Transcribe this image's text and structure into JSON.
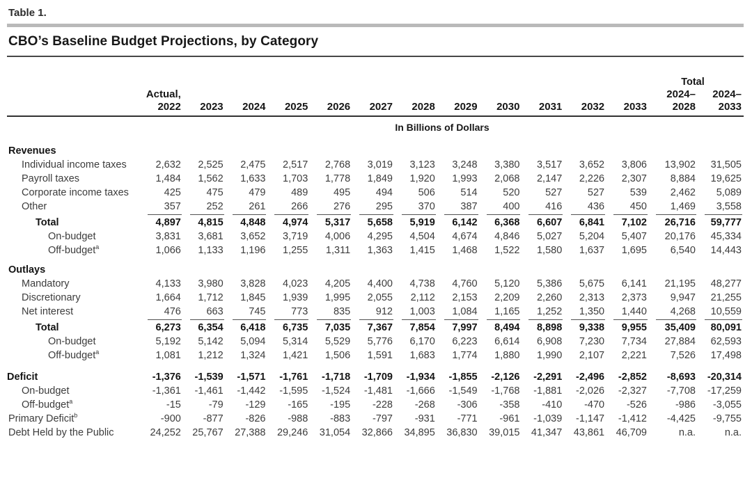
{
  "table_label": "Table 1.",
  "title": "CBO’s Baseline Budget Projections, by Category",
  "units_label": "In Billions of Dollars",
  "table": {
    "total_span_label": "Total",
    "total_span_count": 2,
    "columns": [
      "Actual,|2022",
      "2023",
      "2024",
      "2025",
      "2026",
      "2027",
      "2028",
      "2029",
      "2030",
      "2031",
      "2032",
      "2033",
      "2024–|2028",
      "2024–|2033"
    ],
    "rows": [
      {
        "type": "section",
        "label": "Revenues"
      },
      {
        "type": "item",
        "label": "Individual income taxes",
        "values": [
          "2,632",
          "2,525",
          "2,475",
          "2,517",
          "2,768",
          "3,019",
          "3,123",
          "3,248",
          "3,380",
          "3,517",
          "3,652",
          "3,806",
          "13,902",
          "31,505"
        ]
      },
      {
        "type": "item",
        "label": "Payroll taxes",
        "values": [
          "1,484",
          "1,562",
          "1,633",
          "1,703",
          "1,778",
          "1,849",
          "1,920",
          "1,993",
          "2,068",
          "2,147",
          "2,226",
          "2,307",
          "8,884",
          "19,625"
        ]
      },
      {
        "type": "item",
        "label": "Corporate income taxes",
        "values": [
          "425",
          "475",
          "479",
          "489",
          "495",
          "494",
          "506",
          "514",
          "520",
          "527",
          "527",
          "539",
          "2,462",
          "5,089"
        ]
      },
      {
        "type": "item",
        "label": "Other",
        "rule_below": true,
        "values": [
          "357",
          "252",
          "261",
          "266",
          "276",
          "295",
          "370",
          "387",
          "400",
          "416",
          "436",
          "450",
          "1,469",
          "3,558"
        ]
      },
      {
        "type": "total",
        "label": "Total",
        "values": [
          "4,897",
          "4,815",
          "4,848",
          "4,974",
          "5,317",
          "5,658",
          "5,919",
          "6,142",
          "6,368",
          "6,607",
          "6,841",
          "7,102",
          "26,716",
          "59,777"
        ]
      },
      {
        "type": "sub",
        "label": "On-budget",
        "values": [
          "3,831",
          "3,681",
          "3,652",
          "3,719",
          "4,006",
          "4,295",
          "4,504",
          "4,674",
          "4,846",
          "5,027",
          "5,204",
          "5,407",
          "20,176",
          "45,334"
        ]
      },
      {
        "type": "sub",
        "label": "Off-budget",
        "sup": "a",
        "values": [
          "1,066",
          "1,133",
          "1,196",
          "1,255",
          "1,311",
          "1,363",
          "1,415",
          "1,468",
          "1,522",
          "1,580",
          "1,637",
          "1,695",
          "6,540",
          "14,443"
        ]
      },
      {
        "type": "section",
        "label": "Outlays",
        "gap": true
      },
      {
        "type": "item",
        "label": "Mandatory",
        "values": [
          "4,133",
          "3,980",
          "3,828",
          "4,023",
          "4,205",
          "4,400",
          "4,738",
          "4,760",
          "5,120",
          "5,386",
          "5,675",
          "6,141",
          "21,195",
          "48,277"
        ]
      },
      {
        "type": "item",
        "label": "Discretionary",
        "values": [
          "1,664",
          "1,712",
          "1,845",
          "1,939",
          "1,995",
          "2,055",
          "2,112",
          "2,153",
          "2,209",
          "2,260",
          "2,313",
          "2,373",
          "9,947",
          "21,255"
        ]
      },
      {
        "type": "item",
        "label": "Net interest",
        "rule_below": true,
        "values": [
          "476",
          "663",
          "745",
          "773",
          "835",
          "912",
          "1,003",
          "1,084",
          "1,165",
          "1,252",
          "1,350",
          "1,440",
          "4,268",
          "10,559"
        ]
      },
      {
        "type": "total",
        "label": "Total",
        "values": [
          "6,273",
          "6,354",
          "6,418",
          "6,735",
          "7,035",
          "7,367",
          "7,854",
          "7,997",
          "8,494",
          "8,898",
          "9,338",
          "9,955",
          "35,409",
          "80,091"
        ]
      },
      {
        "type": "sub",
        "label": "On-budget",
        "values": [
          "5,192",
          "5,142",
          "5,094",
          "5,314",
          "5,529",
          "5,776",
          "6,170",
          "6,223",
          "6,614",
          "6,908",
          "7,230",
          "7,734",
          "27,884",
          "62,593"
        ]
      },
      {
        "type": "sub",
        "label": "Off-budget",
        "sup": "a",
        "values": [
          "1,081",
          "1,212",
          "1,324",
          "1,421",
          "1,506",
          "1,591",
          "1,683",
          "1,774",
          "1,880",
          "1,990",
          "2,107",
          "2,221",
          "7,526",
          "17,498"
        ]
      },
      {
        "type": "section-values",
        "label": "Deficit",
        "gap": true,
        "values": [
          "-1,376",
          "-1,539",
          "-1,571",
          "-1,761",
          "-1,718",
          "-1,709",
          "-1,934",
          "-1,855",
          "-2,126",
          "-2,291",
          "-2,496",
          "-2,852",
          "-8,693",
          "-20,314"
        ]
      },
      {
        "type": "item",
        "label": "On-budget",
        "values": [
          "-1,361",
          "-1,461",
          "-1,442",
          "-1,595",
          "-1,524",
          "-1,481",
          "-1,666",
          "-1,549",
          "-1,768",
          "-1,881",
          "-2,026",
          "-2,327",
          "-7,708",
          "-17,259"
        ]
      },
      {
        "type": "item",
        "label": "Off-budget",
        "sup": "a",
        "values": [
          "-15",
          "-79",
          "-129",
          "-165",
          "-195",
          "-228",
          "-268",
          "-306",
          "-358",
          "-410",
          "-470",
          "-526",
          "-986",
          "-3,055"
        ]
      },
      {
        "type": "plain",
        "label": "Primary Deficit",
        "sup": "b",
        "values": [
          "-900",
          "-877",
          "-826",
          "-988",
          "-883",
          "-797",
          "-931",
          "-771",
          "-961",
          "-1,039",
          "-1,147",
          "-1,412",
          "-4,425",
          "-9,755"
        ]
      },
      {
        "type": "plain",
        "label": "Debt Held by the Public",
        "values": [
          "24,252",
          "25,767",
          "27,388",
          "29,246",
          "31,054",
          "32,866",
          "34,895",
          "36,830",
          "39,015",
          "41,347",
          "43,861",
          "46,709",
          "n.a.",
          "n.a."
        ]
      }
    ]
  }
}
